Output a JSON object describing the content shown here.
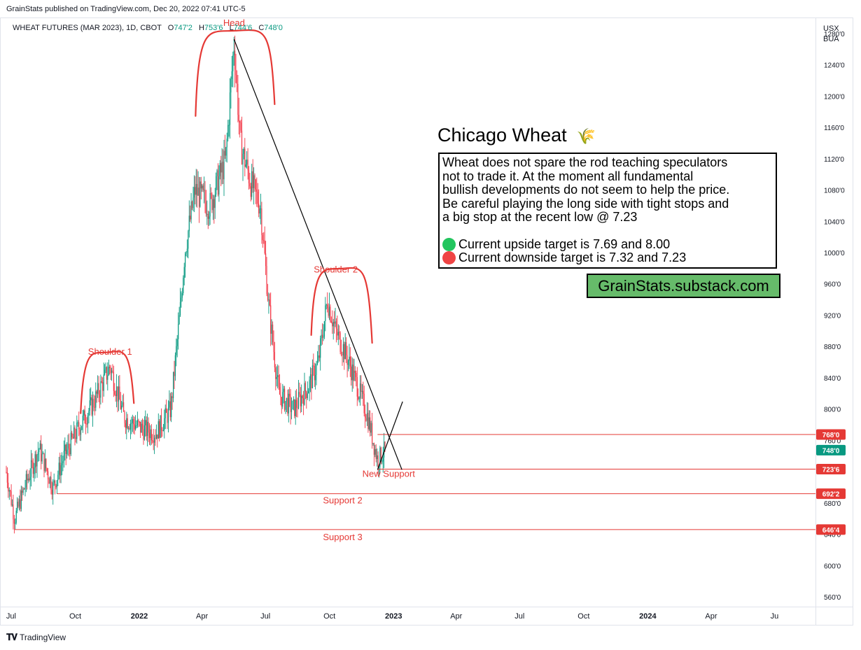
{
  "publisher": "GrainStats published on TradingView.com, Dec 20, 2022 07:41 UTC-5",
  "symbol": {
    "name": "WHEAT FUTURES (MAR 2023), 1D, CBOT",
    "o_label": "O",
    "o": "747'2",
    "h_label": "H",
    "h": "753'6",
    "l_label": "L",
    "l": "744'6",
    "c_label": "C",
    "c": "748'0"
  },
  "currency": [
    "USX",
    "BUA"
  ],
  "brand": "TradingView",
  "overlay": {
    "title": "Chicago Wheat",
    "wheat_icon": "wheat-icon",
    "note": "Wheat does not spare the rod teaching speculators\nnot to trade it.  At the moment all fundamental\nbullish developments do not seem to help the price.\nBe careful playing the long side with tight stops and\na big stop at the recent low @ 7.23",
    "targets": [
      {
        "text": "Current upside target is 7.69 and 8.00",
        "color": "#22c55e"
      },
      {
        "text": "Current downside target is 7.32 and 7.23",
        "color": "#ef4444"
      }
    ],
    "url": "GrainStats.substack.com"
  },
  "chart_data": {
    "type": "candlestick",
    "title": "WHEAT FUTURES (MAR 2023), 1D, CBOT",
    "y_unit": "USX/BUA",
    "ylim": [
      548,
      1300
    ],
    "y_ticks": [
      "560'0",
      "600'0",
      "640'0",
      "680'0",
      "720'0",
      "760'0",
      "800'0",
      "840'0",
      "880'0",
      "920'0",
      "960'0",
      "1000'0",
      "1040'0",
      "1080'0",
      "1120'0",
      "1160'0",
      "1200'0",
      "1240'0",
      "1280'0"
    ],
    "x_ticks": [
      {
        "label": "Jul",
        "bold": false
      },
      {
        "label": "Oct",
        "bold": false
      },
      {
        "label": "2022",
        "bold": true
      },
      {
        "label": "Apr",
        "bold": false
      },
      {
        "label": "Jul",
        "bold": false
      },
      {
        "label": "Oct",
        "bold": false
      },
      {
        "label": "2023",
        "bold": true
      },
      {
        "label": "Apr",
        "bold": false
      },
      {
        "label": "Jul",
        "bold": false
      },
      {
        "label": "Oct",
        "bold": false
      },
      {
        "label": "2024",
        "bold": true
      },
      {
        "label": "Apr",
        "bold": false
      },
      {
        "label": "Ju",
        "bold": false
      }
    ],
    "colors": {
      "up": "#089981",
      "down": "#f23645",
      "annotation": "#e53935",
      "trendline": "#000000"
    },
    "price_path": [
      [
        "2021-06-24",
        720
      ],
      [
        "2021-07-06",
        660
      ],
      [
        "2021-07-20",
        700
      ],
      [
        "2021-08-10",
        750
      ],
      [
        "2021-08-30",
        700
      ],
      [
        "2021-09-15",
        740
      ],
      [
        "2021-10-05",
        775
      ],
      [
        "2021-10-28",
        810
      ],
      [
        "2021-11-20",
        855
      ],
      [
        "2021-12-10",
        790
      ],
      [
        "2022-01-05",
        775
      ],
      [
        "2022-01-25",
        770
      ],
      [
        "2022-02-15",
        800
      ],
      [
        "2022-03-01",
        930
      ],
      [
        "2022-03-07",
        1000
      ],
      [
        "2022-03-22",
        1080
      ],
      [
        "2022-04-12",
        1060
      ],
      [
        "2022-05-05",
        1120
      ],
      [
        "2022-05-17",
        1270
      ],
      [
        "2022-05-26",
        1140
      ],
      [
        "2022-06-10",
        1090
      ],
      [
        "2022-06-24",
        1060
      ],
      [
        "2022-07-06",
        930
      ],
      [
        "2022-07-20",
        820
      ],
      [
        "2022-08-10",
        800
      ],
      [
        "2022-09-01",
        830
      ],
      [
        "2022-09-15",
        860
      ],
      [
        "2022-09-28",
        940
      ],
      [
        "2022-10-10",
        900
      ],
      [
        "2022-10-25",
        870
      ],
      [
        "2022-11-10",
        830
      ],
      [
        "2022-11-25",
        790
      ],
      [
        "2022-12-09",
        735
      ],
      [
        "2022-12-20",
        748
      ]
    ],
    "levels": [
      {
        "value": 768.0,
        "label": "768'0",
        "start": "2022-12-09",
        "label_color": "#e53935"
      },
      {
        "value": 748.0,
        "label": "748'0",
        "start": null,
        "label_color": "#089981"
      },
      {
        "value": 723.75,
        "label": "723'6",
        "start": "2022-12-09",
        "label_color": "#e53935"
      },
      {
        "value": 692.25,
        "label": "692'2",
        "start": "2021-09-05",
        "label_color": "#e53935"
      },
      {
        "value": 646.5,
        "label": "646'4",
        "start": "2021-07-06",
        "label_color": "#e53935"
      }
    ],
    "annotations": [
      {
        "text": "Head",
        "date": "2022-05-17",
        "value": 1290
      },
      {
        "text": "Shoulder 1",
        "date": "2021-11-20",
        "value": 870
      },
      {
        "text": "Shoulder 2",
        "date": "2022-10-10",
        "value": 975
      },
      {
        "text": "New Support",
        "date": "2022-12-25",
        "value": 714
      },
      {
        "text": "Support 2",
        "date": "2022-10-20",
        "value": 680
      },
      {
        "text": "Support 3",
        "date": "2022-10-20",
        "value": 633
      }
    ],
    "trendlines": [
      {
        "from": [
          "2022-05-17",
          1273
        ],
        "to": [
          "2023-01-13",
          723
        ]
      },
      {
        "from": [
          "2022-12-09",
          723
        ],
        "to": [
          "2023-01-14",
          810
        ]
      }
    ]
  }
}
